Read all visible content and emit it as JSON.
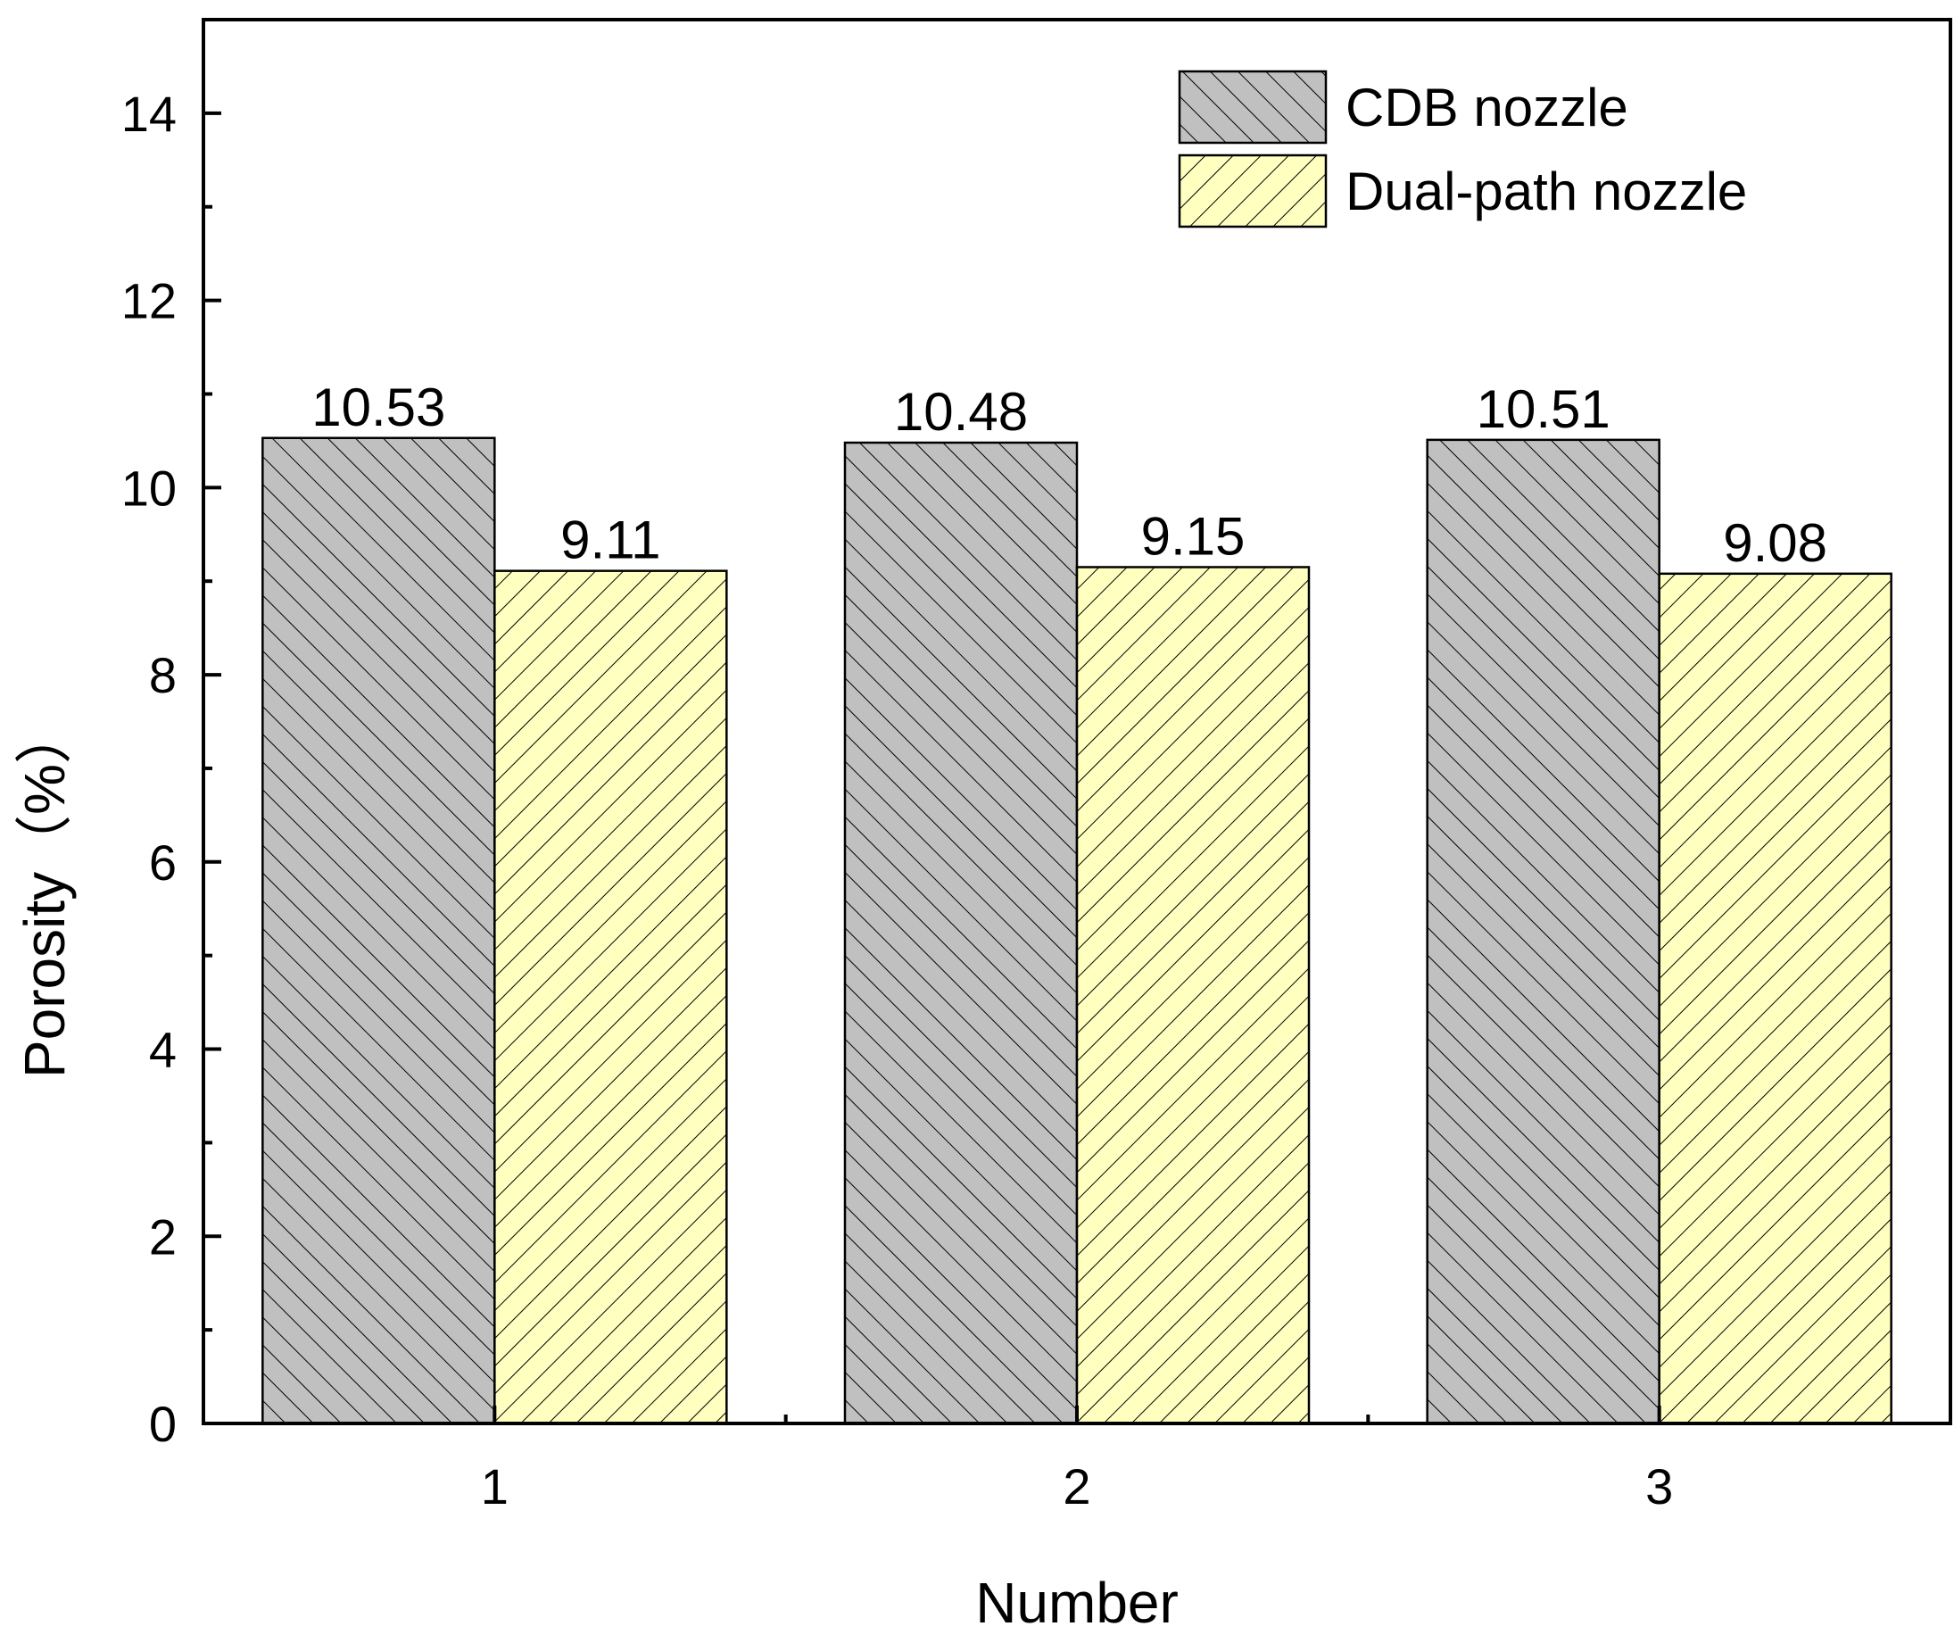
{
  "chart_data": {
    "type": "bar",
    "title": "",
    "xlabel": "Number",
    "ylabel": "Porosity（%）",
    "categories": [
      "1",
      "2",
      "3"
    ],
    "series": [
      {
        "name": "CDB nozzle",
        "values": [
          10.53,
          10.48,
          10.51
        ],
        "color": "#c0c0c0",
        "hatch": "backslash"
      },
      {
        "name": "Dual-path nozzle",
        "values": [
          9.11,
          9.15,
          9.08
        ],
        "color": "#ffffc0",
        "hatch": "slash"
      }
    ],
    "data_labels": [
      [
        "10.53",
        "10.48",
        "10.51"
      ],
      [
        "9.11",
        "9.15",
        "9.08"
      ]
    ],
    "ylim": [
      0,
      15
    ],
    "yticks": [
      0,
      2,
      4,
      6,
      8,
      10,
      12,
      14
    ],
    "yticks_minor": [
      1,
      3,
      5,
      7,
      9,
      11,
      13
    ],
    "legend_position": "top-right",
    "grid": false
  }
}
